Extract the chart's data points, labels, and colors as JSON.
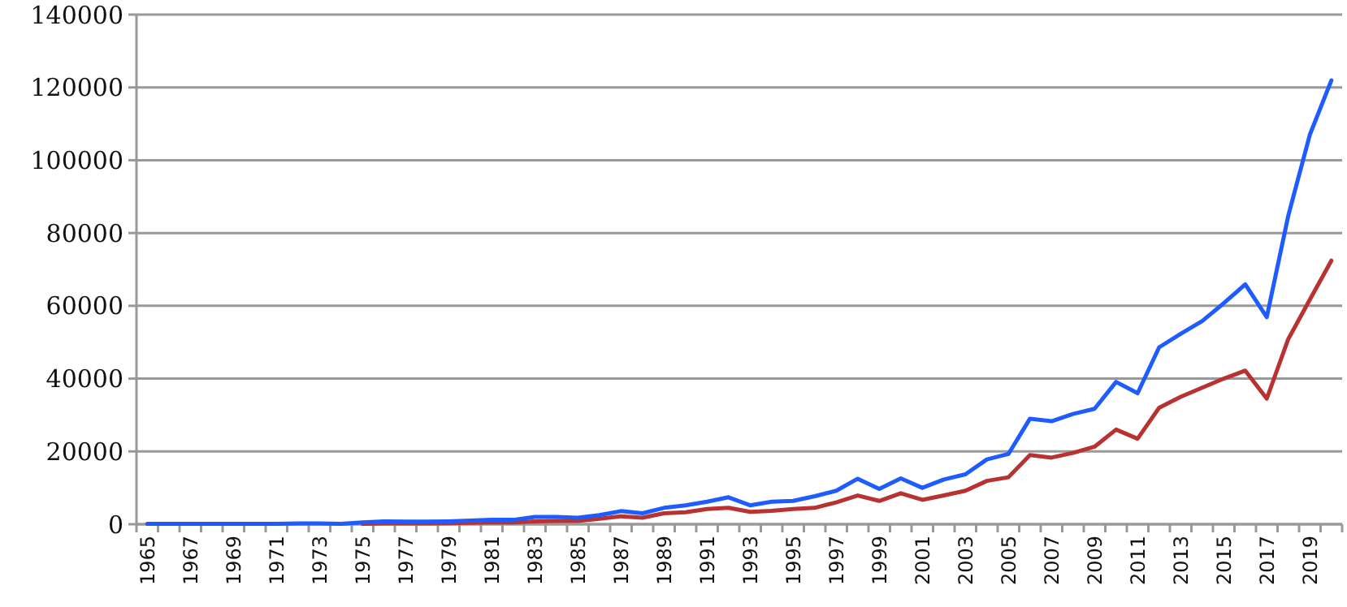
{
  "chart_data": {
    "type": "line",
    "categories": [
      "1965",
      null,
      "1967",
      null,
      "1969",
      null,
      "1971",
      null,
      "1973",
      null,
      "1975",
      null,
      "1977",
      null,
      "1979",
      null,
      "1981",
      null,
      "1983",
      null,
      "1985",
      null,
      "1987",
      null,
      "1989",
      null,
      "1991",
      null,
      "1993",
      null,
      "1995",
      null,
      "1997",
      null,
      "1999",
      null,
      "2001",
      null,
      "2003",
      null,
      "2005",
      null,
      "2007",
      null,
      "2009",
      null,
      "2011",
      null,
      "2013",
      null,
      "2015",
      null,
      "2017",
      null,
      "2019",
      null
    ],
    "series": [
      {
        "color": "#1f5cff",
        "values": [
          100,
          100,
          100,
          100,
          100,
          100,
          100,
          200,
          200,
          100,
          500,
          800,
          700,
          700,
          800,
          1000,
          1200,
          1200,
          2000,
          2000,
          1800,
          2500,
          3600,
          3000,
          4500,
          5200,
          6200,
          7400,
          5200,
          6200,
          6400,
          7700,
          9200,
          12500,
          9700,
          12600,
          10000,
          12300,
          13700,
          17800,
          19300,
          29000,
          28300,
          30300,
          31700,
          39100,
          36000,
          48600,
          52300,
          55800,
          60700,
          65900,
          56900,
          84800,
          107000,
          121900
        ]
      },
      {
        "color": "#b83232",
        "values": [
          null,
          null,
          null,
          null,
          null,
          null,
          null,
          null,
          null,
          null,
          100,
          200,
          200,
          200,
          300,
          400,
          500,
          500,
          800,
          900,
          900,
          1500,
          2200,
          1800,
          3000,
          3300,
          4200,
          4500,
          3400,
          3700,
          4200,
          4500,
          6000,
          7900,
          6400,
          8500,
          6700,
          7900,
          9200,
          11900,
          12900,
          19000,
          18300,
          19600,
          21300,
          26000,
          23500,
          32000,
          35000,
          37500,
          40000,
          42200,
          34500,
          50900,
          61700,
          72400
        ]
      }
    ],
    "ylim": [
      0,
      140000
    ],
    "yticks": [
      0,
      20000,
      40000,
      60000,
      80000,
      100000,
      120000,
      140000
    ],
    "grid": "y",
    "marker": "none",
    "line_style": "solid"
  }
}
